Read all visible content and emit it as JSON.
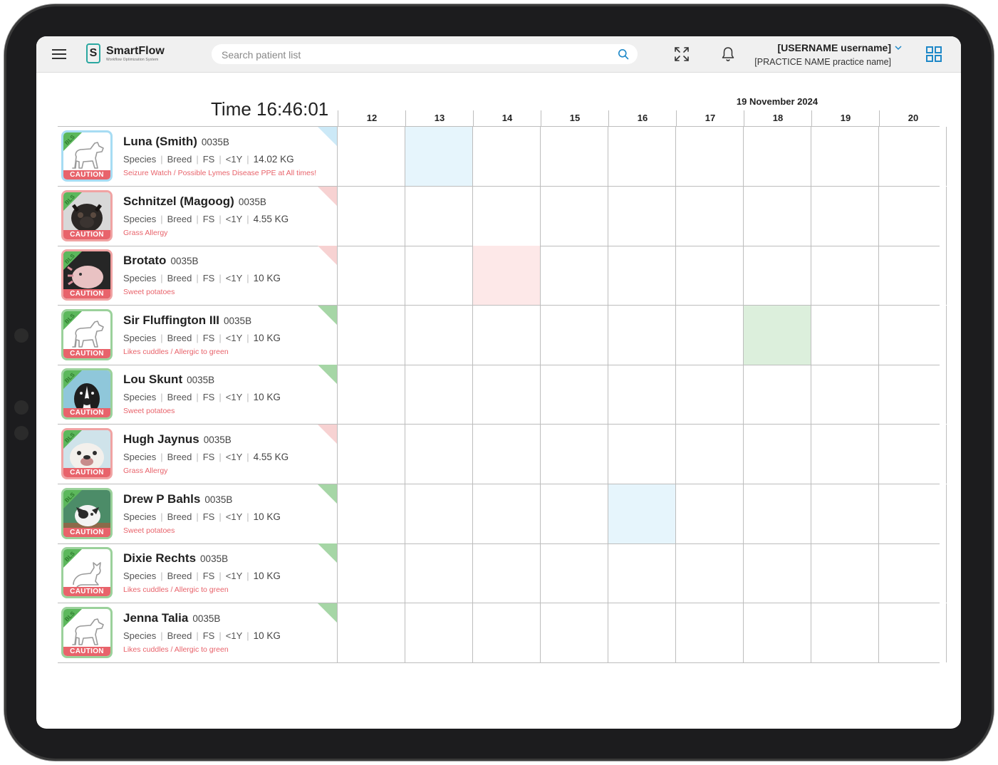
{
  "header": {
    "logo_name": "SmartFlow",
    "logo_tagline": "Workflow Optimization System",
    "search_placeholder": "Search patient list",
    "username": "[USERNAME username]",
    "practice": "[PRACTICE NAME practice name]"
  },
  "schedule": {
    "time_label": "Time 16:46:01",
    "date": "19 November 2024",
    "days": [
      "12",
      "13",
      "14",
      "15",
      "16",
      "17",
      "18",
      "19",
      "20"
    ]
  },
  "common": {
    "species": "Species",
    "breed": "Breed",
    "sex": "FS",
    "age": "<1Y",
    "caution": "CAUTION",
    "bls": "BLS"
  },
  "patients": [
    {
      "name": "Luna (Smith)",
      "id": "0035B",
      "weight": "14.02 KG",
      "note": "Seizure Watch / Possible Lymes Disease PPE at All times!",
      "photo": "dog-outline",
      "border": "blue",
      "flag": "blue",
      "highlight_day": "13",
      "highlight_color": "blue"
    },
    {
      "name": "Schnitzel (Magoog)",
      "id": "0035B",
      "weight": "4.55 KG",
      "note": "Grass Allergy",
      "photo": "pug-photo",
      "border": "red",
      "flag": "red",
      "highlight_day": "",
      "highlight_color": ""
    },
    {
      "name": "Brotato",
      "id": "0035B",
      "weight": "10 KG",
      "note": "Sweet potatoes",
      "photo": "axolotl-photo",
      "border": "red",
      "flag": "red",
      "highlight_day": "14",
      "highlight_color": "red"
    },
    {
      "name": "Sir Fluffington III",
      "id": "0035B",
      "weight": "10 KG",
      "note": "Likes cuddles / Allergic to green",
      "photo": "dog-outline",
      "border": "green",
      "flag": "green",
      "highlight_day": "18",
      "highlight_color": "green"
    },
    {
      "name": "Lou Skunt",
      "id": "0035B",
      "weight": "10 KG",
      "note": "Sweet potatoes",
      "photo": "dog-photo",
      "border": "green",
      "flag": "green",
      "highlight_day": "",
      "highlight_color": ""
    },
    {
      "name": "Hugh Jaynus",
      "id": "0035B",
      "weight": "4.55 KG",
      "note": "Grass Allergy",
      "photo": "bulldog-photo",
      "border": "red",
      "flag": "red",
      "highlight_day": "",
      "highlight_color": ""
    },
    {
      "name": "Drew P Bahls",
      "id": "0035B",
      "weight": "10 KG",
      "note": "Sweet potatoes",
      "photo": "cat-photo",
      "border": "green",
      "flag": "green",
      "highlight_day": "16",
      "highlight_color": "blue"
    },
    {
      "name": "Dixie Rechts",
      "id": "0035B",
      "weight": "10 KG",
      "note": "Likes cuddles / Allergic to green",
      "photo": "cat-outline",
      "border": "green",
      "flag": "green",
      "highlight_day": "",
      "highlight_color": ""
    },
    {
      "name": "Jenna Talia",
      "id": "0035B",
      "weight": "10 KG",
      "note": "Likes cuddles / Allergic to green",
      "photo": "dog-outline",
      "border": "green",
      "flag": "green",
      "highlight_day": "",
      "highlight_color": ""
    }
  ]
}
